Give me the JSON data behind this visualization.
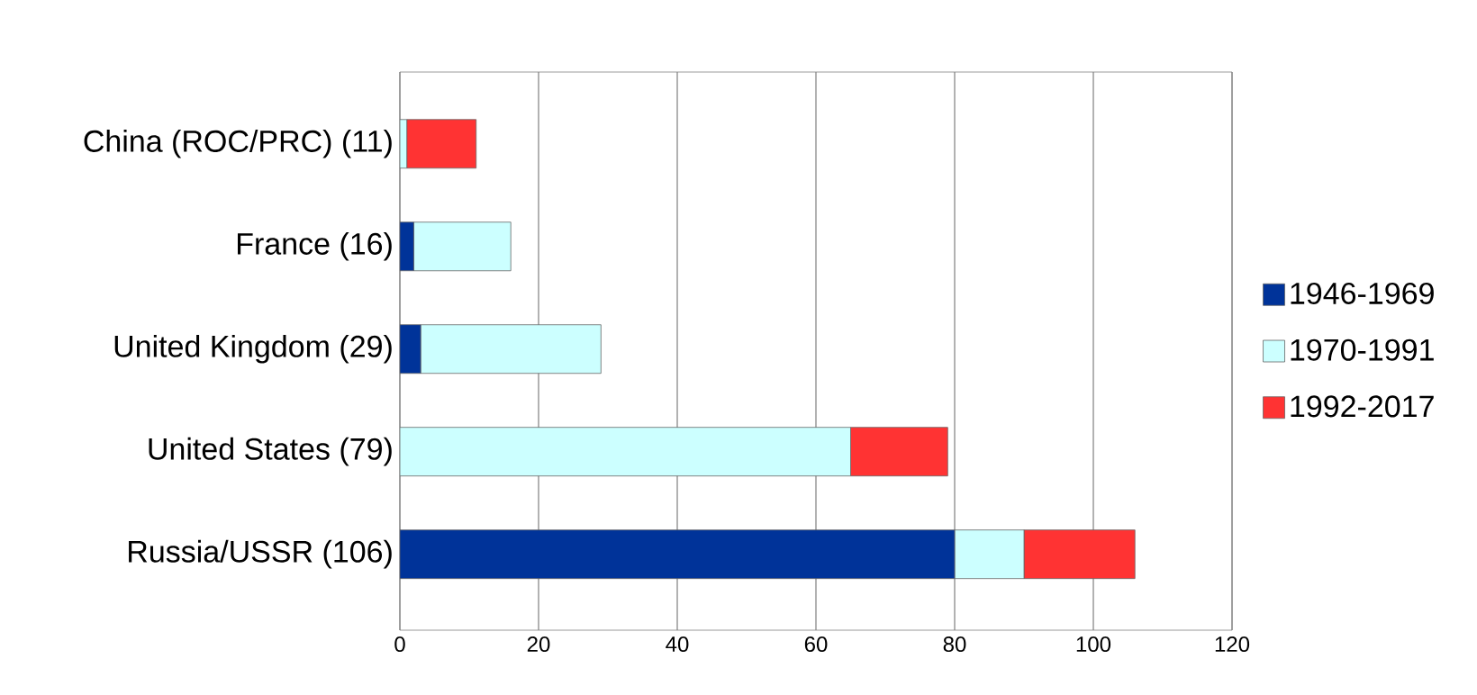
{
  "chart_data": {
    "type": "bar",
    "orientation": "horizontal",
    "stacked": true,
    "categories": [
      "China (ROC/PRC) (11)",
      "France (16)",
      "United Kingdom (29)",
      "United States (79)",
      "Russia/USSR (106)"
    ],
    "series": [
      {
        "name": "1946-1969",
        "color": "#003399",
        "values": [
          0,
          2,
          3,
          0,
          80
        ]
      },
      {
        "name": "1970-1991",
        "color": "#ccffff",
        "values": [
          1,
          14,
          26,
          65,
          10
        ]
      },
      {
        "name": "1992-2017",
        "color": "#ff3333",
        "values": [
          10,
          0,
          0,
          14,
          16
        ]
      }
    ],
    "xlim": [
      0,
      120
    ],
    "xticks": [
      0,
      20,
      40,
      60,
      80,
      100,
      120
    ],
    "grid": "x",
    "legend": "right"
  }
}
